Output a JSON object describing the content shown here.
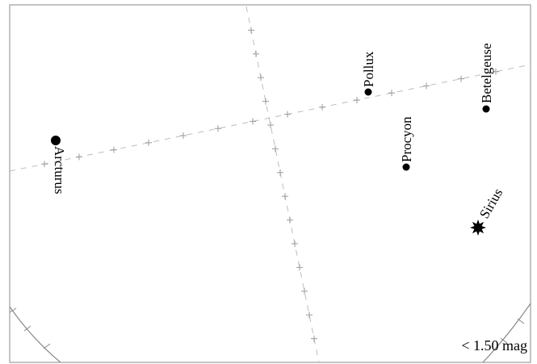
{
  "chart": {
    "magnitude_limit_label": "< 1.50 mag"
  },
  "stars": [
    {
      "name": "Arcturus",
      "marker": "dot"
    },
    {
      "name": "Pollux",
      "marker": "dot"
    },
    {
      "name": "Procyon",
      "marker": "dot"
    },
    {
      "name": "Betelgeuse",
      "marker": "dot"
    },
    {
      "name": "Sirius",
      "marker": "starburst"
    }
  ],
  "colors": {
    "star": "#000000",
    "grid": "#bdbdbd",
    "frame": "#888888"
  }
}
